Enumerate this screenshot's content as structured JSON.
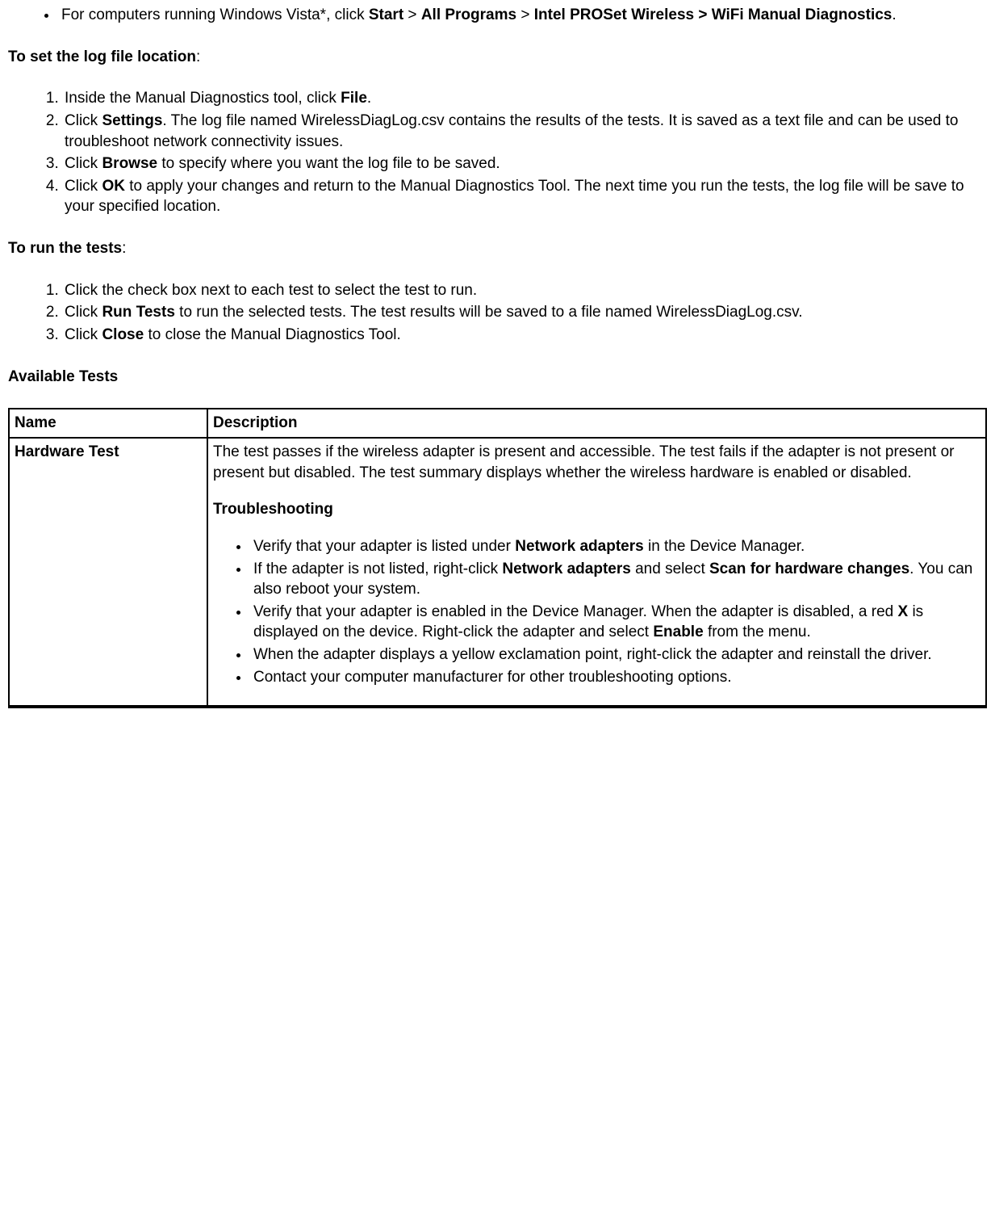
{
  "intro_bullet": {
    "pre": "For computers running Windows Vista*, click ",
    "b1": "Start",
    "s1": " > ",
    "b2": "All Programs",
    "s2": " > ",
    "b3": "Intel PROSet Wireless > WiFi Manual Diagnostics",
    "post": "."
  },
  "heading_logfile_bold": "To set the log file location",
  "heading_logfile_tail": ":",
  "logfile_steps": {
    "s1": {
      "pre": "Inside the Manual Diagnostics tool, click ",
      "b": "File",
      "post": "."
    },
    "s2": {
      "pre": "Click ",
      "b": "Settings",
      "post": ". The log file named WirelessDiagLog.csv contains the results of the tests. It is saved as a text file and can be used to troubleshoot network connectivity issues."
    },
    "s3": {
      "pre": "Click ",
      "b": "Browse",
      "post": " to specify where you want the log file to be saved."
    },
    "s4": {
      "pre": "Click ",
      "b": "OK",
      "post": " to apply your changes and return to the Manual Diagnostics Tool. The next time you run the tests, the log file will be save to your specified location."
    }
  },
  "heading_runtests_bold": "To run the tests",
  "heading_runtests_tail": ":",
  "runtests_steps": {
    "s1": {
      "text": "Click the check box next to each test to select the test to run."
    },
    "s2": {
      "pre": "Click ",
      "b": "Run Tests",
      "post": " to run the selected tests. The test results will be saved to a file named WirelessDiagLog.csv."
    },
    "s3": {
      "pre": "Click ",
      "b": "Close",
      "post": " to close the Manual Diagnostics Tool."
    }
  },
  "heading_available": "Available Tests",
  "table": {
    "header": {
      "name": "Name",
      "desc": "Description"
    },
    "row1": {
      "name": "Hardware Test",
      "para": "The test passes if the wireless adapter is present and accessible. The test fails if the adapter is not present or present but disabled. The test summary displays whether the wireless hardware is enabled or disabled.",
      "subhead": "Troubleshooting",
      "bullets": {
        "b1": {
          "pre": "Verify that your adapter is listed under ",
          "bold": "Network adapters",
          "post": " in the Device Manager."
        },
        "b2": {
          "pre": "If the adapter is not listed, right-click ",
          "bold1": "Network adapters",
          "mid": " and select ",
          "bold2": "Scan for hardware changes",
          "post": ". You can also reboot your system."
        },
        "b3": {
          "pre": "Verify that your adapter is enabled in the Device Manager. When the adapter is disabled, a red ",
          "bold1": "X",
          "mid": " is displayed on the device. Right-click the adapter and select ",
          "bold2": "Enable",
          "post": " from the menu."
        },
        "b4": {
          "text": "When the adapter displays a yellow exclamation point, right-click the adapter and reinstall the driver."
        },
        "b5": {
          "text": "Contact your computer manufacturer for other troubleshooting options."
        }
      }
    }
  }
}
